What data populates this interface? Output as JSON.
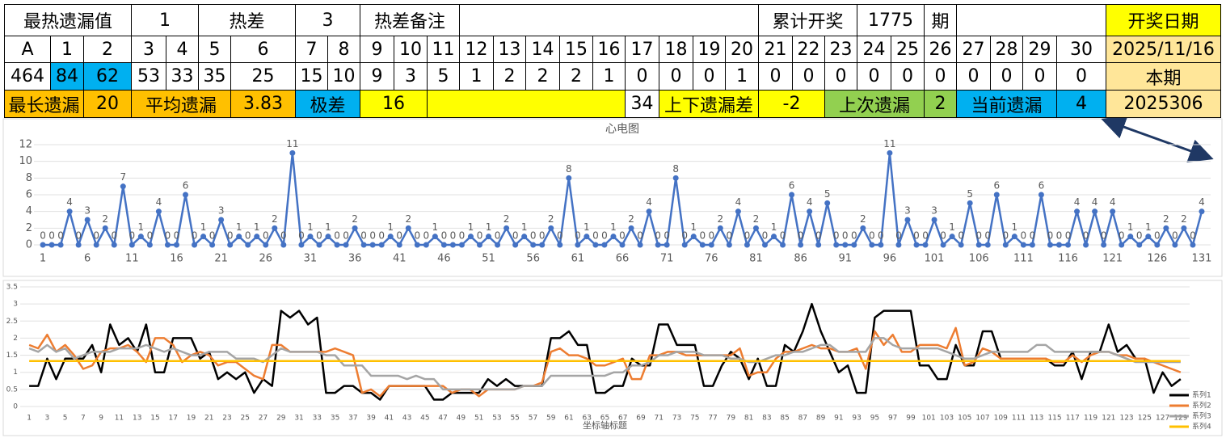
{
  "table": {
    "rows": [
      [
        "最热遗漏值",
        1,
        "热差",
        3,
        "热差备注",
        "累计开奖",
        1775,
        "期",
        "开奖日期"
      ],
      [
        "A",
        1,
        2,
        3,
        4,
        5,
        6,
        7,
        8,
        9,
        10,
        11,
        12,
        13,
        14,
        15,
        16,
        17,
        18,
        19,
        20,
        21,
        22,
        23,
        24,
        25,
        26,
        27,
        28,
        29,
        30,
        "2025/11/16"
      ],
      [
        464,
        84,
        62,
        53,
        33,
        35,
        25,
        15,
        10,
        9,
        3,
        5,
        1,
        2,
        2,
        2,
        1,
        0,
        0,
        0,
        1,
        0,
        0,
        0,
        0,
        0,
        0,
        0,
        0,
        0,
        0,
        "本期"
      ],
      [
        "最长遗漏",
        20,
        "平均遗漏",
        3.83,
        "极差",
        16,
        34,
        "上下遗漏差",
        -2,
        "上次遗漏",
        2,
        "当前遗漏",
        4,
        2025306
      ]
    ]
  },
  "chart_data": [
    {
      "type": "line",
      "title": "心电图",
      "color": "#4472c4",
      "markers": true,
      "data_labels": true,
      "grid": true,
      "x": [
        1,
        2,
        3,
        4,
        5,
        6,
        7,
        8,
        9,
        10,
        11,
        12,
        13,
        14,
        15,
        16,
        17,
        18,
        19,
        20,
        21,
        22,
        23,
        24,
        25,
        26,
        27,
        28,
        29,
        30,
        31,
        32,
        33,
        34,
        35,
        36,
        37,
        38,
        39,
        40,
        41,
        42,
        43,
        44,
        45,
        46,
        47,
        48,
        49,
        50,
        51,
        52,
        53,
        54,
        55,
        56,
        57,
        58,
        59,
        60,
        61,
        62,
        63,
        64,
        65,
        66,
        67,
        68,
        69,
        70,
        71,
        72,
        73,
        74,
        75,
        76,
        77,
        78,
        79,
        80,
        81,
        82,
        83,
        84,
        85,
        86,
        87,
        88,
        89,
        90,
        91,
        92,
        93,
        94,
        95,
        96,
        97,
        98,
        99,
        100,
        101,
        102,
        103,
        104,
        105,
        106,
        107,
        108,
        109,
        110,
        111,
        112,
        113,
        114,
        115,
        116,
        117,
        118,
        119,
        120,
        121,
        122,
        123,
        124,
        125,
        126,
        127,
        128,
        129,
        130,
        131
      ],
      "values": [
        0,
        0,
        0,
        4,
        0,
        3,
        0,
        2,
        0,
        7,
        0,
        1,
        0,
        4,
        0,
        0,
        6,
        0,
        1,
        0,
        3,
        0,
        1,
        0,
        1,
        0,
        2,
        0,
        11,
        0,
        1,
        0,
        1,
        0,
        0,
        2,
        0,
        0,
        0,
        1,
        0,
        2,
        0,
        0,
        1,
        0,
        0,
        0,
        1,
        0,
        1,
        0,
        2,
        0,
        1,
        0,
        0,
        2,
        0,
        8,
        0,
        1,
        0,
        0,
        1,
        0,
        2,
        0,
        4,
        0,
        0,
        8,
        0,
        1,
        0,
        0,
        2,
        0,
        4,
        0,
        2,
        0,
        1,
        0,
        6,
        0,
        4,
        0,
        5,
        0,
        0,
        0,
        2,
        0,
        0,
        11,
        0,
        3,
        0,
        0,
        3,
        0,
        1,
        0,
        5,
        0,
        0,
        6,
        0,
        1,
        0,
        0,
        6,
        0,
        0,
        0,
        4,
        0,
        4,
        0,
        4,
        0,
        1,
        0,
        1,
        0,
        2,
        0,
        2,
        0,
        4
      ],
      "xlim": [
        0,
        132
      ],
      "xticks": [
        1,
        6,
        11,
        16,
        21,
        26,
        31,
        36,
        41,
        46,
        51,
        56,
        61,
        66,
        71,
        76,
        81,
        86,
        91,
        96,
        101,
        106,
        111,
        116,
        121,
        126,
        131
      ],
      "ylim": [
        0,
        12
      ],
      "yticks": [
        0,
        2,
        4,
        6,
        8,
        10,
        12
      ]
    },
    {
      "type": "line",
      "x_label": "坐标轴标题",
      "grid": true,
      "legend": "right",
      "x": [
        1,
        2,
        3,
        4,
        5,
        6,
        7,
        8,
        9,
        10,
        11,
        12,
        13,
        14,
        15,
        16,
        17,
        18,
        19,
        20,
        21,
        22,
        23,
        24,
        25,
        26,
        27,
        28,
        29,
        30,
        31,
        32,
        33,
        34,
        35,
        36,
        37,
        38,
        39,
        40,
        41,
        42,
        43,
        44,
        45,
        46,
        47,
        48,
        49,
        50,
        51,
        52,
        53,
        54,
        55,
        56,
        57,
        58,
        59,
        60,
        61,
        62,
        63,
        64,
        65,
        66,
        67,
        68,
        69,
        70,
        71,
        72,
        73,
        74,
        75,
        76,
        77,
        78,
        79,
        80,
        81,
        82,
        83,
        84,
        85,
        86,
        87,
        88,
        89,
        90,
        91,
        92,
        93,
        94,
        95,
        96,
        97,
        98,
        99,
        100,
        101,
        102,
        103,
        104,
        105,
        106,
        107,
        108,
        109,
        110,
        111,
        112,
        113,
        114,
        115,
        116,
        117,
        118,
        119,
        120,
        121,
        122,
        123,
        124,
        125,
        126,
        127,
        128,
        129
      ],
      "series": [
        {
          "name": "系列1",
          "color": "#000000",
          "values": [
            0.6,
            0.6,
            1.4,
            0.8,
            1.4,
            1.4,
            1.4,
            1.8,
            1.0,
            2.4,
            1.8,
            2.0,
            1.6,
            2.4,
            1.0,
            1.0,
            2.0,
            2.0,
            2.0,
            1.4,
            1.6,
            0.8,
            1.0,
            0.8,
            1.0,
            0.4,
            0.8,
            0.6,
            2.8,
            2.6,
            2.8,
            2.4,
            2.6,
            0.4,
            0.4,
            0.6,
            0.6,
            0.4,
            0.4,
            0.2,
            0.6,
            0.6,
            0.6,
            0.6,
            0.6,
            0.2,
            0.2,
            0.4,
            0.4,
            0.4,
            0.4,
            0.8,
            0.6,
            0.8,
            0.6,
            0.6,
            0.6,
            0.6,
            2.0,
            2.0,
            2.2,
            1.8,
            1.8,
            0.4,
            0.4,
            0.6,
            0.6,
            1.4,
            1.2,
            1.2,
            2.4,
            2.4,
            1.8,
            1.8,
            1.8,
            0.6,
            0.6,
            1.2,
            1.6,
            1.4,
            0.8,
            1.4,
            0.6,
            0.6,
            1.8,
            1.6,
            2.2,
            3.0,
            2.2,
            1.6,
            1.0,
            1.2,
            0.4,
            0.4,
            2.6,
            2.8,
            2.8,
            2.8,
            2.8,
            1.2,
            1.2,
            0.8,
            0.8,
            1.8,
            1.2,
            1.2,
            2.2,
            2.2,
            1.4,
            1.4,
            1.4,
            1.4,
            1.4,
            1.4,
            1.2,
            1.2,
            1.6,
            0.8,
            1.6,
            1.6,
            2.4,
            1.6,
            1.8,
            1.4,
            1.4,
            0.4,
            1.0,
            0.6,
            0.8
          ]
        },
        {
          "name": "系列2",
          "color": "#ed7d31",
          "values": [
            1.8,
            1.7,
            2.1,
            1.6,
            1.8,
            1.5,
            1.1,
            1.2,
            1.6,
            1.7,
            1.7,
            1.8,
            1.6,
            1.3,
            2.0,
            2.0,
            1.8,
            1.3,
            1.5,
            1.6,
            1.5,
            1.2,
            1.3,
            1.3,
            1.1,
            0.9,
            0.8,
            1.8,
            1.8,
            1.6,
            1.6,
            1.6,
            1.6,
            1.6,
            1.7,
            1.6,
            1.5,
            0.4,
            0.5,
            0.3,
            0.6,
            0.6,
            0.6,
            0.6,
            0.6,
            0.6,
            0.6,
            0.4,
            0.5,
            0.5,
            0.3,
            0.5,
            0.5,
            0.5,
            0.5,
            0.6,
            0.6,
            0.7,
            1.6,
            1.7,
            1.5,
            1.5,
            1.4,
            1.2,
            1.2,
            1.3,
            1.4,
            0.8,
            0.8,
            1.5,
            1.5,
            1.6,
            1.6,
            1.5,
            1.5,
            1.5,
            1.5,
            1.5,
            1.5,
            1.7,
            0.9,
            1.0,
            1.0,
            1.4,
            1.6,
            1.6,
            1.7,
            1.8,
            1.7,
            1.7,
            1.6,
            1.6,
            1.7,
            1.1,
            2.2,
            1.8,
            2.1,
            1.6,
            1.6,
            1.8,
            1.8,
            1.8,
            1.7,
            2.3,
            1.2,
            1.3,
            1.7,
            1.6,
            1.4,
            1.4,
            1.4,
            1.4,
            1.4,
            1.4,
            1.3,
            1.3,
            1.5,
            1.3,
            1.5,
            1.6,
            1.6,
            1.5,
            1.5,
            1.4,
            1.4,
            1.3,
            1.2,
            1.1,
            1.0
          ]
        },
        {
          "name": "系列3",
          "color": "#a5a5a5",
          "values": [
            1.7,
            1.6,
            1.8,
            1.6,
            1.7,
            1.4,
            1.5,
            1.6,
            1.6,
            1.6,
            1.7,
            1.7,
            1.7,
            1.8,
            1.7,
            1.6,
            1.7,
            1.6,
            1.5,
            1.5,
            1.6,
            1.6,
            1.6,
            1.4,
            1.4,
            1.4,
            1.3,
            1.5,
            1.7,
            1.6,
            1.6,
            1.6,
            1.6,
            1.5,
            1.5,
            1.2,
            1.2,
            1.2,
            0.9,
            0.9,
            0.9,
            0.9,
            0.8,
            0.9,
            0.8,
            0.8,
            0.5,
            0.5,
            0.5,
            0.5,
            0.5,
            0.5,
            0.5,
            0.5,
            0.5,
            0.6,
            0.6,
            0.6,
            0.9,
            0.9,
            0.9,
            0.9,
            0.9,
            0.9,
            0.9,
            1.0,
            1.0,
            1.2,
            1.2,
            1.3,
            1.5,
            1.5,
            1.6,
            1.6,
            1.6,
            1.5,
            1.5,
            1.5,
            1.4,
            1.4,
            1.3,
            1.3,
            1.4,
            1.5,
            1.5,
            1.6,
            1.6,
            1.7,
            1.8,
            1.8,
            1.6,
            1.6,
            1.6,
            1.6,
            2.0,
            2.0,
            1.8,
            1.7,
            1.7,
            1.7,
            1.7,
            1.7,
            1.6,
            1.5,
            1.4,
            1.4,
            1.5,
            1.6,
            1.6,
            1.6,
            1.6,
            1.6,
            1.8,
            1.8,
            1.6,
            1.6,
            1.6,
            1.6,
            1.6,
            1.6,
            1.6,
            1.5,
            1.4,
            1.3,
            1.3,
            1.3,
            1.3,
            1.3,
            1.3
          ]
        },
        {
          "name": "系列4",
          "color": "#ffc000",
          "values": [
            1.33,
            1.33,
            1.33,
            1.33,
            1.33,
            1.33,
            1.33,
            1.33,
            1.33,
            1.33,
            1.33,
            1.33,
            1.33,
            1.33,
            1.33,
            1.33,
            1.33,
            1.33,
            1.33,
            1.33,
            1.33,
            1.33,
            1.33,
            1.33,
            1.33,
            1.33,
            1.33,
            1.33,
            1.33,
            1.33,
            1.33,
            1.33,
            1.33,
            1.33,
            1.33,
            1.33,
            1.33,
            1.33,
            1.33,
            1.33,
            1.33,
            1.33,
            1.33,
            1.33,
            1.33,
            1.33,
            1.33,
            1.33,
            1.33,
            1.33,
            1.33,
            1.33,
            1.33,
            1.33,
            1.33,
            1.33,
            1.33,
            1.33,
            1.33,
            1.33,
            1.33,
            1.33,
            1.33,
            1.33,
            1.33,
            1.33,
            1.33,
            1.33,
            1.33,
            1.33,
            1.33,
            1.33,
            1.33,
            1.33,
            1.33,
            1.33,
            1.33,
            1.33,
            1.33,
            1.33,
            1.33,
            1.33,
            1.33,
            1.33,
            1.33,
            1.33,
            1.33,
            1.33,
            1.33,
            1.33,
            1.33,
            1.33,
            1.33,
            1.33,
            1.33,
            1.33,
            1.33,
            1.33,
            1.33,
            1.33,
            1.33,
            1.33,
            1.33,
            1.33,
            1.33,
            1.33,
            1.33,
            1.33,
            1.33,
            1.33,
            1.33,
            1.33,
            1.33,
            1.33,
            1.33,
            1.33,
            1.33,
            1.33,
            1.33,
            1.33,
            1.33,
            1.33,
            1.33,
            1.33,
            1.33,
            1.33,
            1.33,
            1.33,
            1.33
          ]
        }
      ],
      "xlim": [
        0,
        130
      ],
      "xticks": [
        1,
        3,
        5,
        7,
        9,
        11,
        13,
        15,
        17,
        19,
        21,
        23,
        25,
        27,
        29,
        31,
        33,
        35,
        37,
        39,
        41,
        43,
        45,
        47,
        49,
        51,
        53,
        55,
        57,
        59,
        61,
        63,
        65,
        67,
        69,
        71,
        73,
        75,
        77,
        79,
        81,
        83,
        85,
        87,
        89,
        91,
        93,
        95,
        97,
        99,
        101,
        103,
        105,
        107,
        109,
        111,
        113,
        115,
        117,
        119,
        121,
        123,
        125,
        127,
        129
      ],
      "ylim": [
        0,
        3.5
      ],
      "yticks": [
        0,
        0.5,
        1,
        1.5,
        2,
        2.5,
        3,
        3.5
      ]
    }
  ]
}
